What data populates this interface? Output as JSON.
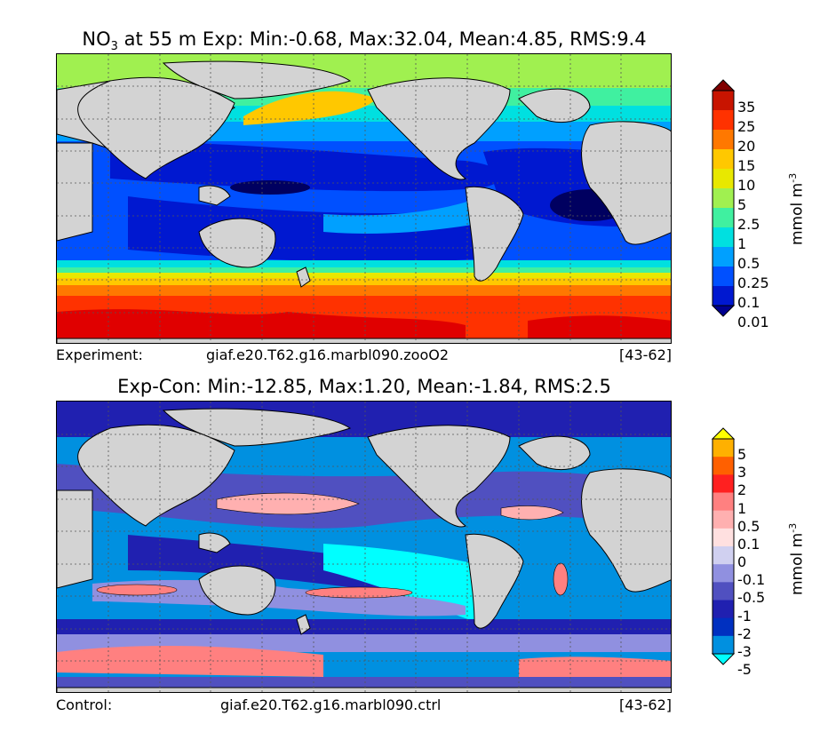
{
  "top_panel": {
    "title_prefix": "NO",
    "title_sub": "3",
    "title_rest": " at 55 m Exp: Min:-0.68, Max:32.04, Mean:4.85, RMS:9.4",
    "caption_label": "Experiment:",
    "caption_case": "giaf.e20.T62.g16.marbl090.zooO2",
    "caption_years": "[43-62]",
    "colorbar": {
      "ticks": [
        "35",
        "25",
        "20",
        "15",
        "10",
        "5",
        "2.5",
        "1",
        "0.5",
        "0.25",
        "0.1",
        "0.01"
      ],
      "colors": [
        "#800000",
        "#c81400",
        "#ff3200",
        "#ff7800",
        "#ffc800",
        "#e8e800",
        "#a0f050",
        "#40f0a0",
        "#00e0e0",
        "#00a0ff",
        "#0050ff",
        "#0018d0",
        "#000090"
      ],
      "unit": "mmol m",
      "unit_exp": "-3"
    }
  },
  "bottom_panel": {
    "title": "Exp-Con: Min:-12.85, Max:1.20, Mean:-1.84, RMS:2.5",
    "caption_label": "Control:",
    "caption_case": "giaf.e20.T62.g16.marbl090.ctrl",
    "caption_years": "[43-62]",
    "colorbar": {
      "ticks": [
        "5",
        "3",
        "2",
        "1",
        "0.5",
        "0.1",
        "0",
        "-0.1",
        "-0.5",
        "-1",
        "-2",
        "-3",
        "-5"
      ],
      "colors": [
        "#ffff00",
        "#ffb000",
        "#ff6000",
        "#ff2020",
        "#ff8080",
        "#ffb0b0",
        "#ffe0e0",
        "#d0d0f0",
        "#9090e0",
        "#5050c0",
        "#2020b0",
        "#0030c0",
        "#0090e0",
        "#00ffff"
      ],
      "unit": "mmol m",
      "unit_exp": "-3"
    }
  },
  "colors": {
    "land": "#d3d3d3",
    "nodata": "#ffffff"
  }
}
